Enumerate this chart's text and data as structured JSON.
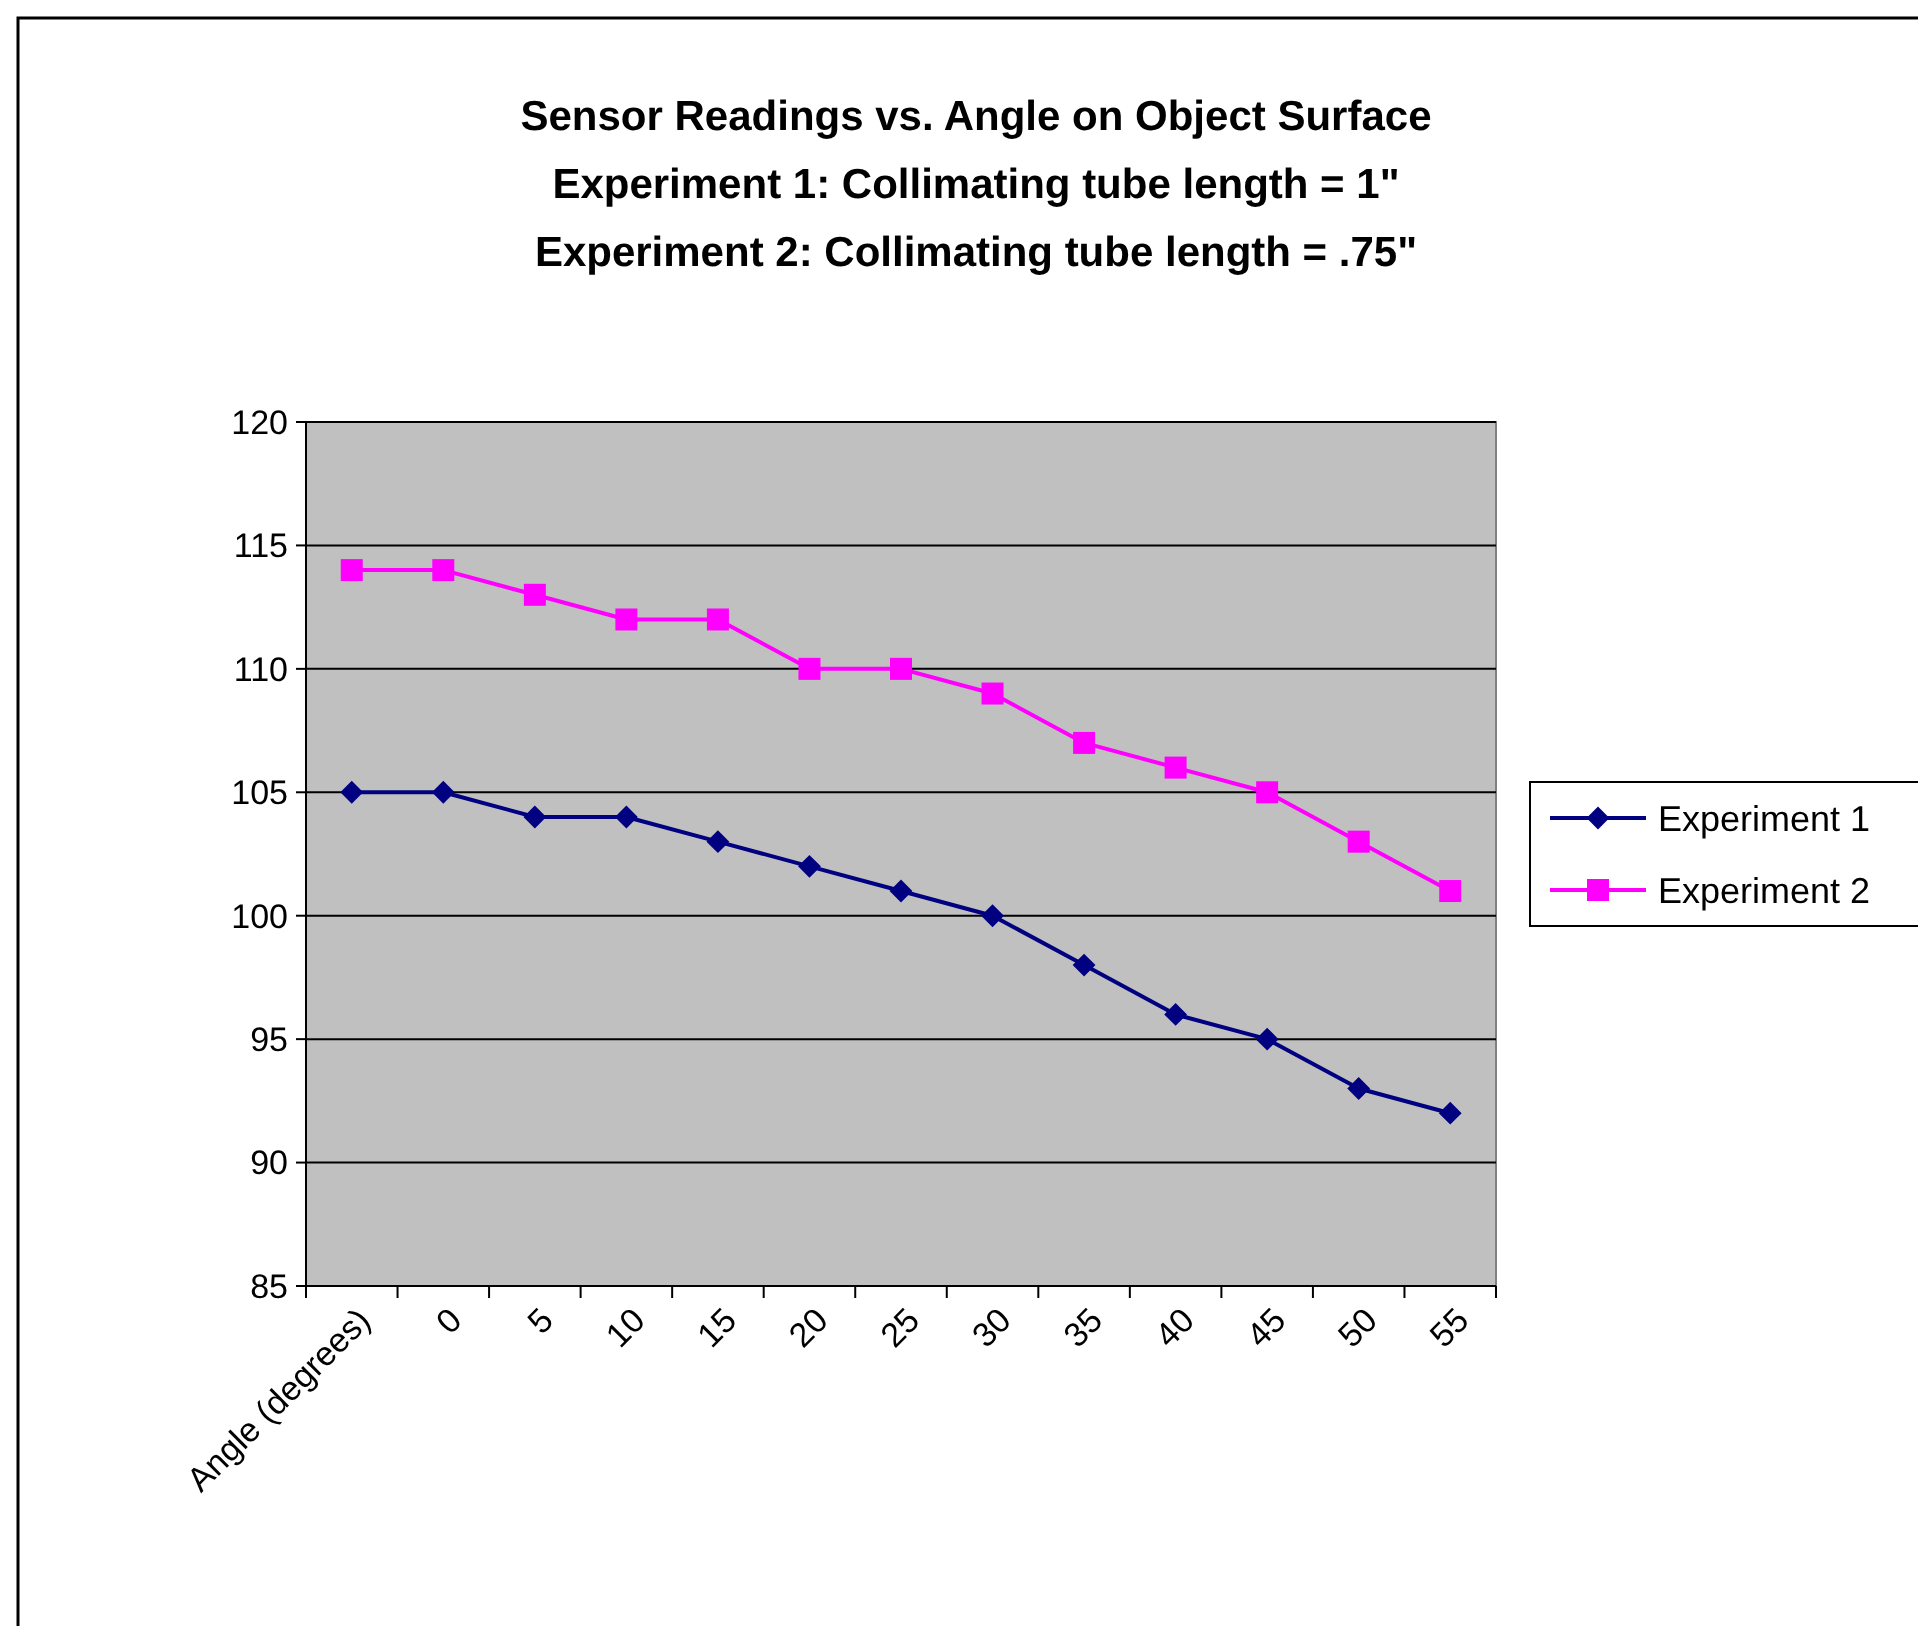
{
  "chart_data": {
    "type": "line",
    "title": "Sensor Readings vs. Angle on Object Surface\nExperiment 1:  Collimating tube length =  1\"\nExperiment 2: Collimating tube length =  .75\"",
    "categories": [
      "Angle (degrees)",
      "0",
      "5",
      "10",
      "15",
      "20",
      "25",
      "30",
      "35",
      "40",
      "45",
      "50",
      "55"
    ],
    "series": [
      {
        "name": "Experiment 1",
        "color": "#000080",
        "marker": "diamond",
        "values": [
          105,
          105,
          104,
          104,
          103,
          102,
          101,
          100,
          98,
          96,
          95,
          93,
          92
        ]
      },
      {
        "name": "Experiment 2",
        "color": "#ff00ff",
        "marker": "square",
        "values": [
          114,
          114,
          113,
          112,
          112,
          110,
          110,
          109,
          107,
          106,
          105,
          103,
          101
        ]
      }
    ],
    "ylim": [
      85,
      120
    ],
    "yticks": [
      85,
      90,
      95,
      100,
      105,
      110,
      115,
      120
    ],
    "grid": "y",
    "legend": "right"
  }
}
